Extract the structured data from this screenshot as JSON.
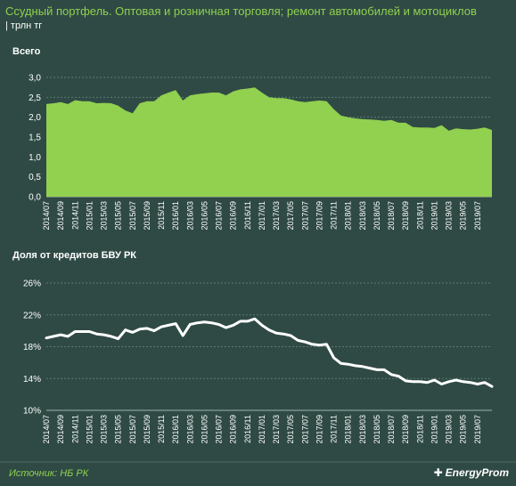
{
  "header": {
    "title": "Ссудный портфель. Оптовая и розничная торговля; ремонт автомобилей и мотоциклов",
    "unit": "| трлн тг"
  },
  "footer": {
    "source": "Источник: НБ РК",
    "brand": "EnergyProm"
  },
  "colors": {
    "background": "#2f4a44",
    "area": "#92d050",
    "line": "#ffffff",
    "title": "#8fd14f"
  },
  "chart_data": [
    {
      "type": "area",
      "title": "Всего",
      "ylim": [
        0,
        3
      ],
      "yticks": [
        "0,0",
        "0,5",
        "1,0",
        "1,5",
        "2,0",
        "2,5",
        "3,0"
      ],
      "x_tick_labels": [
        "2014/07",
        "2014/09",
        "2014/11",
        "2015/01",
        "2015/03",
        "2015/05",
        "2015/07",
        "2015/09",
        "2015/11",
        "2016/01",
        "2016/03",
        "2016/05",
        "2016/07",
        "2016/09",
        "2016/11",
        "2017/01",
        "2017/03",
        "2017/05",
        "2017/07",
        "2017/09",
        "2017/11",
        "2018/01",
        "2018/03",
        "2018/05",
        "2018/07",
        "2018/09",
        "2018/11",
        "2019/01",
        "2019/03",
        "2019/05",
        "2019/07"
      ],
      "values": [
        2.33,
        2.35,
        2.38,
        2.33,
        2.43,
        2.4,
        2.4,
        2.35,
        2.36,
        2.35,
        2.29,
        2.17,
        2.1,
        2.35,
        2.4,
        2.4,
        2.55,
        2.62,
        2.68,
        2.42,
        2.55,
        2.58,
        2.6,
        2.62,
        2.62,
        2.55,
        2.65,
        2.7,
        2.72,
        2.75,
        2.62,
        2.5,
        2.48,
        2.48,
        2.45,
        2.4,
        2.38,
        2.4,
        2.42,
        2.4,
        2.2,
        2.04,
        2.0,
        1.97,
        1.95,
        1.94,
        1.93,
        1.91,
        1.93,
        1.86,
        1.86,
        1.75,
        1.74,
        1.74,
        1.73,
        1.8,
        1.66,
        1.72,
        1.7,
        1.69,
        1.71,
        1.74,
        1.68
      ]
    },
    {
      "type": "line",
      "title": "Доля от кредитов  БВУ РК",
      "ylim": [
        10,
        26
      ],
      "yticks": [
        "10%",
        "14%",
        "18%",
        "22%",
        "26%"
      ],
      "x_tick_labels": [
        "2014/07",
        "2014/09",
        "2014/11",
        "2015/01",
        "2015/03",
        "2015/05",
        "2015/07",
        "2015/09",
        "2015/11",
        "2016/01",
        "2016/03",
        "2016/05",
        "2016/07",
        "2016/09",
        "2016/11",
        "2017/01",
        "2017/03",
        "2017/05",
        "2017/07",
        "2017/09",
        "2017/11",
        "2018/01",
        "2018/03",
        "2018/05",
        "2018/07",
        "2018/09",
        "2018/11",
        "2019/01",
        "2019/03",
        "2019/05",
        "2019/07"
      ],
      "values": [
        19.1,
        19.3,
        19.5,
        19.3,
        19.9,
        19.9,
        19.9,
        19.6,
        19.5,
        19.3,
        19.0,
        20.1,
        19.8,
        20.2,
        20.3,
        20.0,
        20.5,
        20.7,
        20.9,
        19.4,
        20.8,
        21.0,
        21.1,
        21.0,
        20.8,
        20.4,
        20.7,
        21.2,
        21.2,
        21.5,
        20.7,
        20.1,
        19.7,
        19.6,
        19.4,
        18.8,
        18.6,
        18.3,
        18.2,
        18.3,
        16.6,
        15.9,
        15.8,
        15.6,
        15.5,
        15.3,
        15.1,
        15.1,
        14.5,
        14.3,
        13.7,
        13.6,
        13.6,
        13.5,
        13.8,
        13.3,
        13.6,
        13.8,
        13.6,
        13.5,
        13.3,
        13.5,
        13.0
      ]
    }
  ]
}
